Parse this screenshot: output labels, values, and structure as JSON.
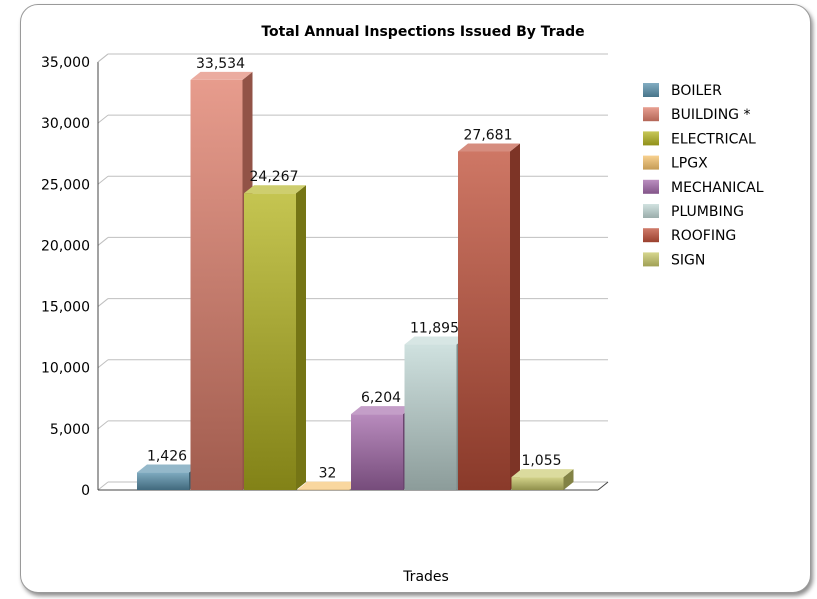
{
  "chart_data": {
    "type": "bar",
    "title": "Total Annual Inspections Issued By Trade",
    "xlabel": "Trades",
    "ylabel": "",
    "ylim": [
      0,
      35000
    ],
    "yticks": [
      0,
      5000,
      10000,
      15000,
      20000,
      25000,
      30000,
      35000
    ],
    "ytick_labels": [
      "0",
      "5,000",
      "10,000",
      "15,000",
      "20,000",
      "25,000",
      "30,000",
      "35,000"
    ],
    "legend_position": "right",
    "grid": true,
    "series": [
      {
        "name": "BOILER",
        "value": 1426,
        "label": "1,426",
        "color": "#5a92ad"
      },
      {
        "name": "BUILDING *",
        "value": 33534,
        "label": "33,534",
        "color": "#e0806d"
      },
      {
        "name": "ELECTRICAL",
        "value": 24267,
        "label": "24,267",
        "color": "#b4b420"
      },
      {
        "name": "LPGX",
        "value": 32,
        "label": "32",
        "color": "#f5c26b"
      },
      {
        "name": "MECHANICAL",
        "value": 6204,
        "label": "6,204",
        "color": "#a46aab"
      },
      {
        "name": "PLUMBING",
        "value": 11895,
        "label": "11,895",
        "color": "#c2d8d6"
      },
      {
        "name": "ROOFING",
        "value": 27681,
        "label": "27,681",
        "color": "#c0503a"
      },
      {
        "name": "SIGN",
        "value": 1055,
        "label": "1,055",
        "color": "#c8c86a"
      }
    ]
  }
}
